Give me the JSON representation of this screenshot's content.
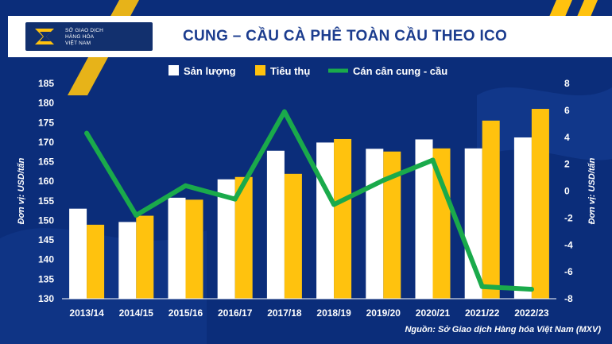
{
  "brand": {
    "logo_lines": [
      "SỞ GIAO DỊCH",
      "HÀNG HÓA",
      "VIỆT NAM"
    ]
  },
  "colors": {
    "background": "#0b2d7a",
    "production": "#ffffff",
    "consumption": "#ffc20e",
    "balance": "#1aaa4b",
    "accent": "#ffc20e"
  },
  "chart_data": {
    "type": "bar",
    "title": "CUNG – CẦU CÀ PHÊ TOÀN CẦU THEO ICO",
    "categories": [
      "2013/14",
      "2014/15",
      "2015/16",
      "2016/17",
      "2017/18",
      "2018/19",
      "2019/20",
      "2020/21",
      "2021/22",
      "2022/23"
    ],
    "series": [
      {
        "name": "Sản lượng",
        "type": "bar",
        "axis": "left",
        "color": "#ffffff",
        "values": [
          153.0,
          149.6,
          155.8,
          160.5,
          167.8,
          169.9,
          168.3,
          170.7,
          168.4,
          171.2
        ]
      },
      {
        "name": "Tiêu thụ",
        "type": "bar",
        "axis": "left",
        "color": "#ffc20e",
        "values": [
          148.9,
          151.2,
          155.3,
          161.1,
          161.9,
          170.8,
          167.6,
          168.4,
          175.5,
          178.5
        ]
      },
      {
        "name": "Cán cân cung - cầu",
        "type": "line",
        "axis": "right",
        "color": "#1aaa4b",
        "values": [
          4.3,
          -1.8,
          0.4,
          -0.6,
          5.9,
          -1.0,
          0.8,
          2.3,
          -7.1,
          -7.3
        ]
      }
    ],
    "y_left": {
      "label": "Đơn vị: USD/tấn",
      "min": 130,
      "max": 185,
      "ticks": [
        130,
        135,
        140,
        145,
        150,
        155,
        160,
        165,
        170,
        175,
        180,
        185
      ]
    },
    "y_right": {
      "label": "Đơn vị: USD/tấn",
      "min": -8,
      "max": 8,
      "ticks": [
        -8,
        -6,
        -4,
        -2,
        0,
        2,
        4,
        6,
        8
      ]
    },
    "legend_position": "top-center",
    "grid": false
  },
  "source": "Nguồn: Sở Giao dịch Hàng hóa Việt Nam (MXV)"
}
